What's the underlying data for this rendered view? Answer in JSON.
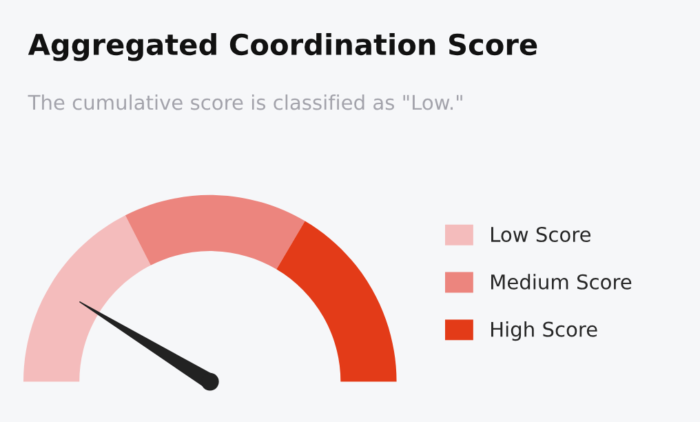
{
  "chart_data": {
    "type": "donut",
    "title": "Aggregated Coordination Score",
    "subtitle": "The cumulative score is classified as \"Low.\"",
    "categories": [
      "Low Score",
      "Medium Score",
      "High Score"
    ],
    "values": [
      35,
      32,
      33
    ],
    "colors": [
      "#f4bcbc",
      "#ec857e",
      "#e33b18"
    ],
    "needle": "Low Score",
    "legend": "right"
  }
}
